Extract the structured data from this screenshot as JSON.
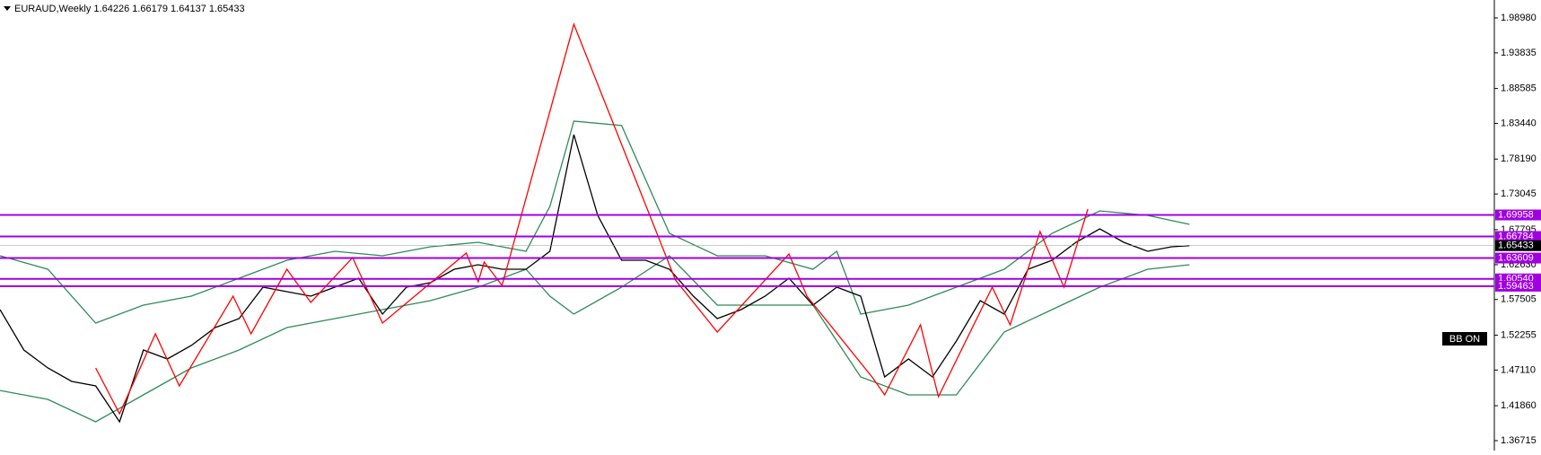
{
  "chart_data": {
    "type": "line",
    "title": "EURAUD,Weekly  1.64226 1.66179 1.64137 1.65433",
    "xlim": [
      0,
      250
    ],
    "ylim": [
      1.3526,
      2.0162
    ],
    "yticks": [
      {
        "value": 1.9898,
        "label": "1.98980"
      },
      {
        "value": 1.93835,
        "label": "1.93835"
      },
      {
        "value": 1.88585,
        "label": "1.88585"
      },
      {
        "value": 1.8344,
        "label": "1.83440"
      },
      {
        "value": 1.7819,
        "label": "1.78190"
      },
      {
        "value": 1.73045,
        "label": "1.73045"
      },
      {
        "value": 1.67795,
        "label": "1.67795"
      },
      {
        "value": 1.6263,
        "label": "1.62630"
      },
      {
        "value": 1.57505,
        "label": "1.57505"
      },
      {
        "value": 1.52255,
        "label": "1.52255"
      },
      {
        "value": 1.4711,
        "label": "1.47110"
      },
      {
        "value": 1.4186,
        "label": "1.41860"
      },
      {
        "value": 1.36715,
        "label": "1.36715"
      }
    ],
    "series": [
      {
        "color": "#2e8b57",
        "x": [
          0,
          8,
          16,
          24,
          32,
          40,
          48,
          56,
          64,
          72,
          80,
          88,
          92,
          96,
          104,
          112,
          120,
          128,
          136,
          140,
          144,
          152,
          160,
          168,
          176,
          184,
          192,
          199
        ],
        "values": [
          1.6395,
          1.6196,
          1.5403,
          1.5667,
          1.58,
          1.6064,
          1.6329,
          1.6461,
          1.6395,
          1.6527,
          1.6593,
          1.6461,
          1.7122,
          1.8378,
          1.8312,
          1.6725,
          1.6395,
          1.6395,
          1.6196,
          1.6461,
          1.5535,
          1.5667,
          1.5932,
          1.6196,
          1.6725,
          1.7056,
          1.699,
          1.6857
        ]
      },
      {
        "color": "#2e8b57",
        "x": [
          0,
          8,
          16,
          24,
          32,
          40,
          48,
          56,
          64,
          72,
          80,
          88,
          92,
          96,
          104,
          112,
          120,
          128,
          136,
          140,
          144,
          152,
          160,
          168,
          176,
          184,
          192,
          199
        ],
        "values": [
          1.4411,
          1.4279,
          1.3949,
          1.4345,
          1.4742,
          1.5007,
          1.5337,
          1.5469,
          1.5601,
          1.5734,
          1.5932,
          1.6196,
          1.58,
          1.5535,
          1.5932,
          1.6395,
          1.5667,
          1.5667,
          1.5667,
          1.5139,
          1.461,
          1.4345,
          1.4345,
          1.5271,
          1.5601,
          1.5932,
          1.6196,
          1.6262
        ]
      },
      {
        "color": "#000000",
        "x": [
          0,
          4,
          8,
          12,
          16,
          20,
          24,
          28,
          32,
          36,
          40,
          44,
          48,
          52,
          56,
          60,
          64,
          68,
          72,
          76,
          80,
          84,
          88,
          92,
          96,
          100,
          104,
          108,
          112,
          116,
          120,
          124,
          128,
          132,
          136,
          140,
          144,
          148,
          152,
          156,
          160,
          164,
          168,
          172,
          176,
          180,
          184,
          188,
          192,
          196,
          199
        ],
        "values": [
          1.5601,
          1.5007,
          1.4742,
          1.4544,
          1.4478,
          1.3949,
          1.5007,
          1.4874,
          1.5072,
          1.5337,
          1.5469,
          1.5932,
          1.5866,
          1.58,
          1.5932,
          1.6064,
          1.5535,
          1.5932,
          1.5998,
          1.6196,
          1.6262,
          1.6196,
          1.6196,
          1.6461,
          1.8179,
          1.699,
          1.6329,
          1.6329,
          1.6196,
          1.58,
          1.5469,
          1.5601,
          1.58,
          1.6064,
          1.5667,
          1.5932,
          1.58,
          1.461,
          1.4874,
          1.461,
          1.5139,
          1.5734,
          1.5535,
          1.6196,
          1.6329,
          1.6593,
          1.6791,
          1.6593,
          1.6461,
          1.6527,
          1.65433
        ]
      },
      {
        "color": "#ff0000",
        "x": [
          16,
          20,
          26,
          30,
          39,
          42,
          48,
          52,
          59,
          64,
          78,
          80,
          81,
          84,
          96,
          113,
          120,
          132,
          135,
          146,
          148,
          154,
          157,
          166,
          169,
          174,
          178,
          182
        ],
        "values": [
          1.4742,
          1.4068,
          1.5244,
          1.4478,
          1.58,
          1.5244,
          1.6196,
          1.5707,
          1.6368,
          1.5403,
          1.6434,
          1.6011,
          1.6302,
          1.5958,
          1.9805,
          1.6038,
          1.5271,
          1.6421,
          1.58,
          1.4597,
          1.4345,
          1.5377,
          1.4319,
          1.5932,
          1.5377,
          1.6752,
          1.5932,
          1.7082
        ]
      }
    ],
    "levels": [
      {
        "value": 1.69958,
        "label": "1.69958"
      },
      {
        "value": 1.66784,
        "label": "1.66784"
      },
      {
        "value": 1.63609,
        "label": "1.63609"
      },
      {
        "value": 1.6054,
        "label": "1.60540"
      },
      {
        "value": 1.59463,
        "label": "1.59463"
      }
    ],
    "level_color": "#a000e0",
    "last_price": 1.65433,
    "button": "BB ON"
  }
}
